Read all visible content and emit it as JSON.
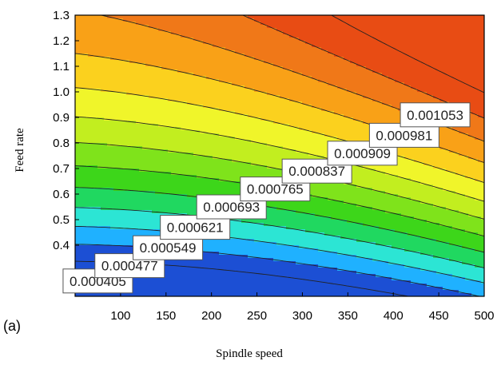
{
  "panel_label": "(a)",
  "chart_data": {
    "type": "contour",
    "xlabel": "Spindle speed",
    "ylabel": "Feed rate",
    "xlim": [
      50,
      500
    ],
    "ylim": [
      0.2,
      1.3
    ],
    "x_ticks": [
      "100",
      "150",
      "200",
      "250",
      "300",
      "350",
      "400",
      "450",
      "500"
    ],
    "y_ticks": [
      "1.3",
      "1.2",
      "1.1",
      "1.0",
      "0.9",
      "0.8",
      "0.7",
      "0.6",
      "0.5",
      "0.4"
    ],
    "contour_levels": [
      {
        "label": "0.000405",
        "x": 75,
        "y": 0.26
      },
      {
        "label": "0.000477",
        "x": 110,
        "y": 0.32
      },
      {
        "label": "0.000549",
        "x": 152,
        "y": 0.39
      },
      {
        "label": "0.000621",
        "x": 182,
        "y": 0.47
      },
      {
        "label": "0.000693",
        "x": 222,
        "y": 0.55
      },
      {
        "label": "0.000765",
        "x": 270,
        "y": 0.62
      },
      {
        "label": "0.000837",
        "x": 316,
        "y": 0.69
      },
      {
        "label": "0.000909",
        "x": 366,
        "y": 0.76
      },
      {
        "label": "0.000981",
        "x": 412,
        "y": 0.83
      },
      {
        "label": "0.001053",
        "x": 446,
        "y": 0.91
      }
    ],
    "color_scale": [
      "#1c4fd4",
      "#1fb1ff",
      "#2ce5d4",
      "#20d860",
      "#3dd61a",
      "#7fe31b",
      "#c2ee1f",
      "#f0f52a",
      "#fbd11e",
      "#f9a117",
      "#f07818",
      "#e84c14"
    ],
    "grid": false,
    "legend": "none"
  }
}
